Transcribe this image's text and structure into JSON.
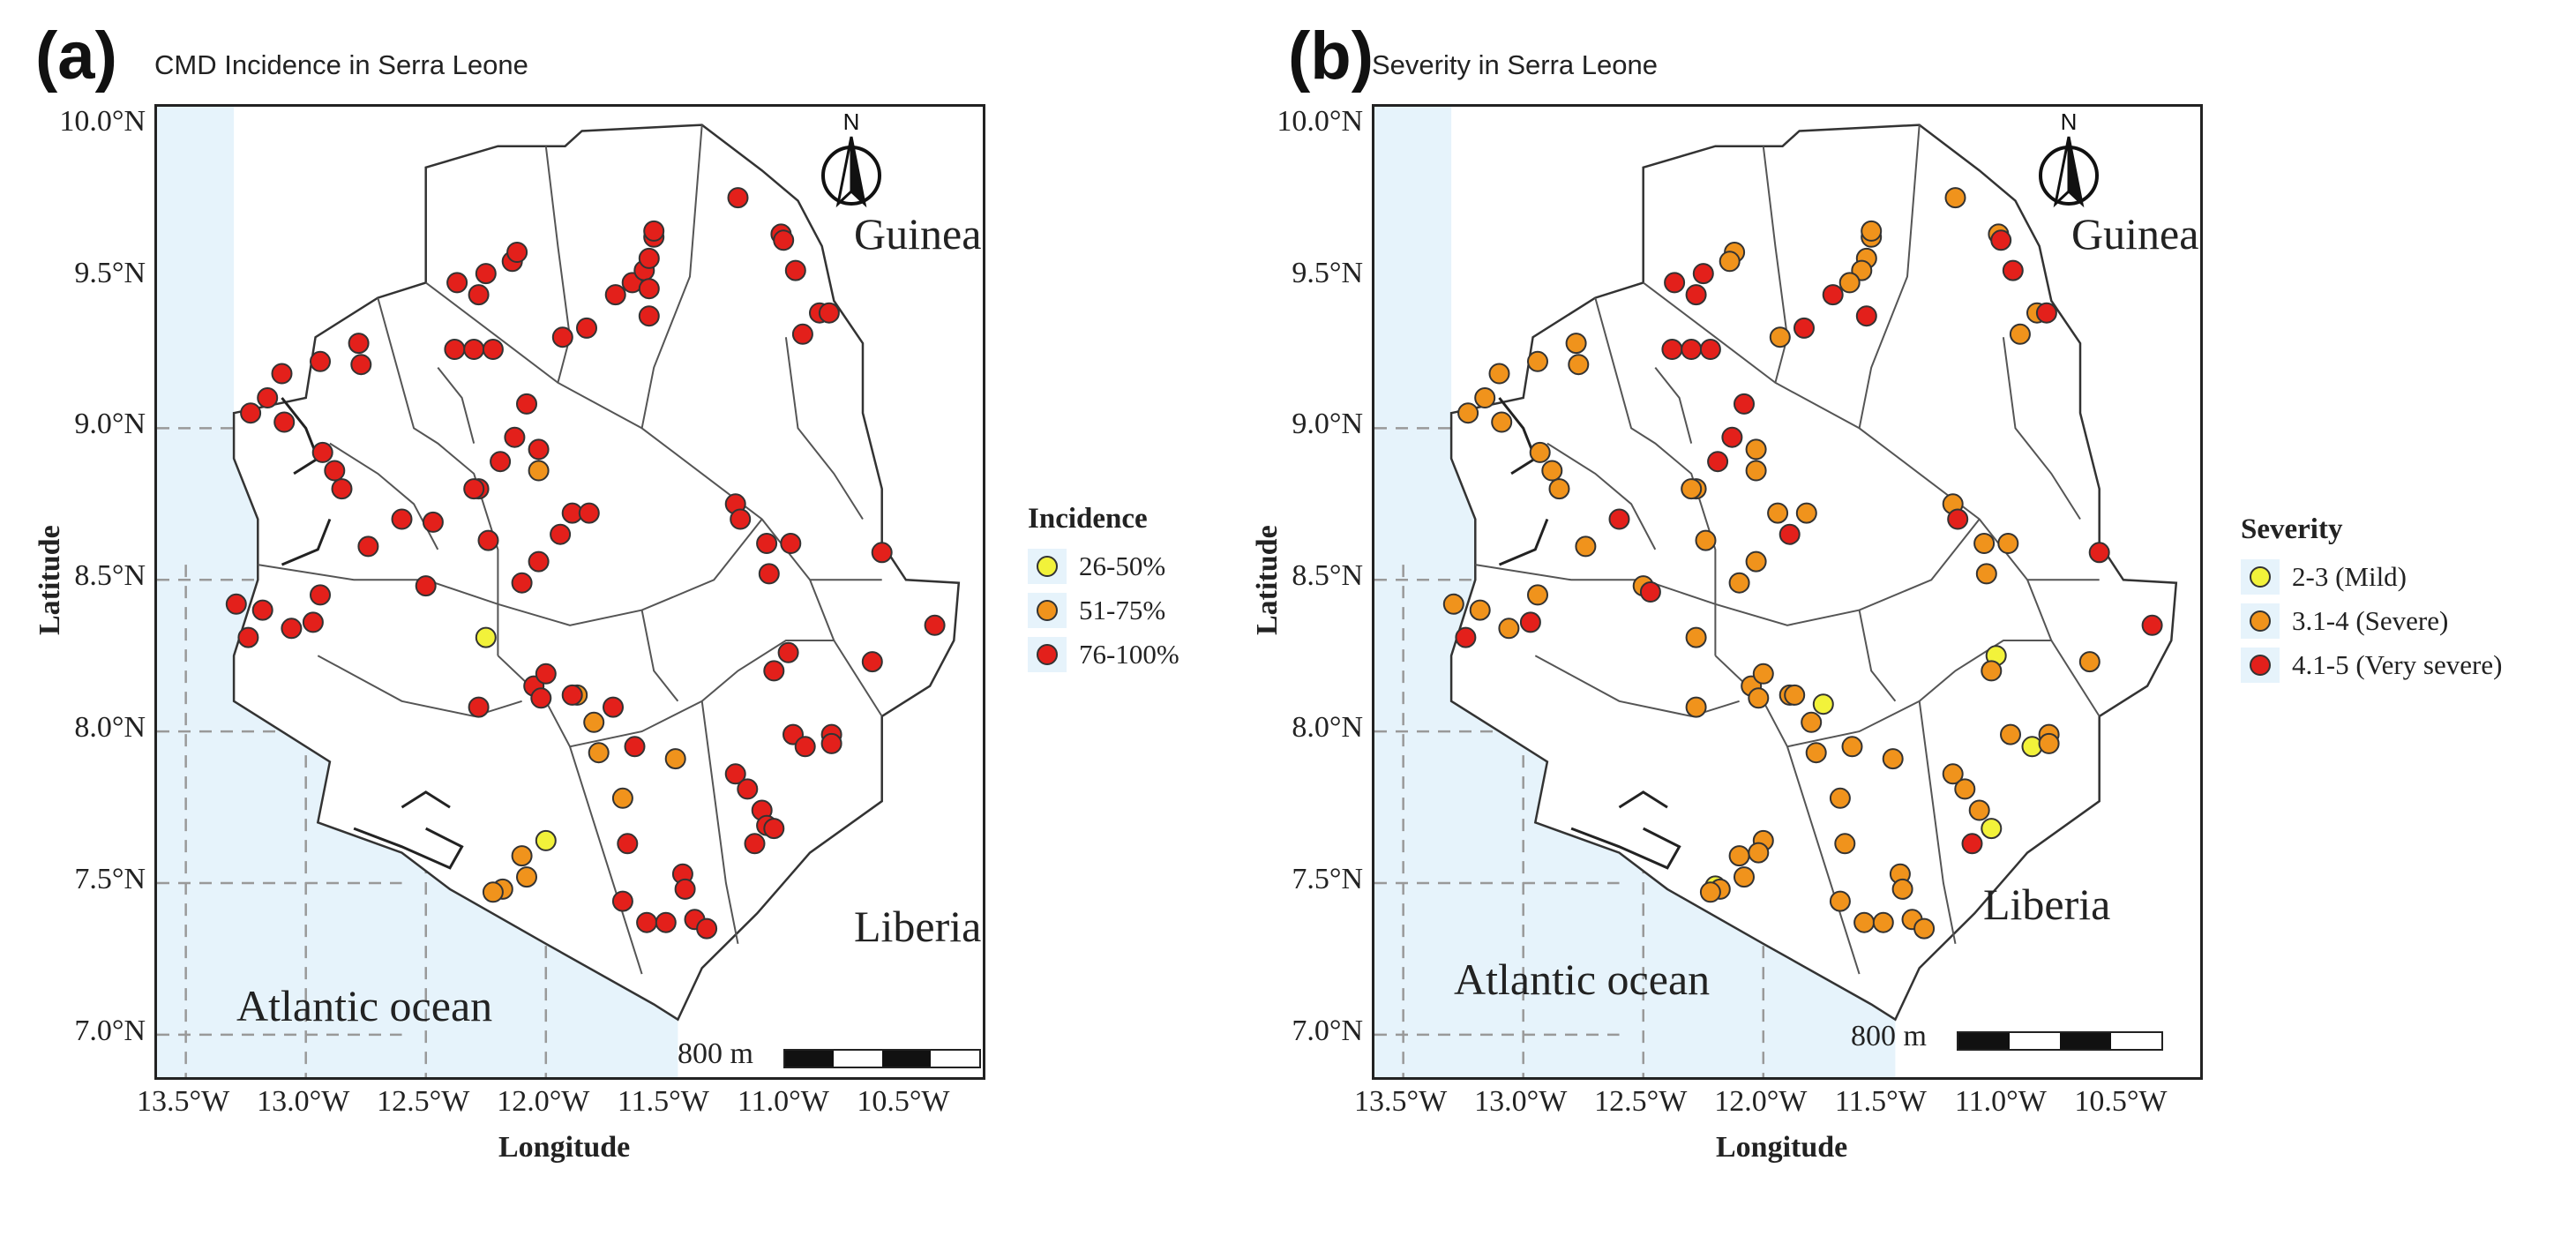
{
  "colors": {
    "ocean": "#e6f3fb",
    "land": "#ffffff",
    "border": "#555555",
    "grid": "#999999",
    "mild": "#f2f23a",
    "severe": "#f0931c",
    "very_severe": "#e3201b"
  },
  "panels": [
    {
      "letter": "(a)",
      "title": "CMD Incidence in Serra Leone",
      "x_label": "Longitude",
      "y_label": "Latitude",
      "x_ticks": [
        "13.5°W",
        "13.0°W",
        "12.5°W",
        "12.0°W",
        "11.5°W",
        "11.0°W",
        "10.5°W"
      ],
      "y_ticks": [
        "10.0°N",
        "9.5°N",
        "9.0°N",
        "8.5°N",
        "8.0°N",
        "7.5°N",
        "7.0°N"
      ],
      "guinea_label": "Guinea",
      "liberia_label": "Liberia",
      "ocean_label": "Atlantic ocean",
      "scale_label": "800 m",
      "north_label": "N",
      "legend": {
        "title": "Incidence",
        "items": [
          {
            "label": "26-50%",
            "color_key": "mild"
          },
          {
            "label": "51-75%",
            "color_key": "severe"
          },
          {
            "label": "76-100%",
            "color_key": "very_severe"
          }
        ]
      }
    },
    {
      "letter": "(b)",
      "title": "Severity in Serra Leone",
      "x_label": "Longitude",
      "y_label": "Latitude",
      "x_ticks": [
        "13.5°W",
        "13.0°W",
        "12.5°W",
        "12.0°W",
        "11.5°W",
        "11.0°W",
        "10.5°W"
      ],
      "y_ticks": [
        "10.0°N",
        "9.5°N",
        "9.0°N",
        "8.5°N",
        "8.0°N",
        "7.5°N",
        "7.0°N"
      ],
      "guinea_label": "Guinea",
      "liberia_label": "Liberia",
      "ocean_label": "Atlantic ocean",
      "scale_label": "800 m",
      "north_label": "N",
      "legend": {
        "title": "Severity",
        "items": [
          {
            "label": "2-3 (Mild)",
            "color_key": "mild"
          },
          {
            "label": "3.1-4 (Severe)",
            "color_key": "severe"
          },
          {
            "label": "4.1-5 (Very severe)",
            "color_key": "very_severe"
          }
        ]
      }
    }
  ],
  "chart_data": [
    {
      "type": "scatter",
      "title": "CMD Incidence in Serra Leone",
      "xlabel": "Longitude",
      "ylabel": "Latitude",
      "xlim": [
        -13.62,
        -10.18
      ],
      "ylim": [
        6.86,
        10.06
      ],
      "grid": "dashed graticule",
      "legend_position": "right",
      "series": [
        {
          "name": "26-50%",
          "color_key": "mild",
          "points": [
            [
              -12.25,
              8.31
            ],
            [
              -12.0,
              7.64
            ]
          ]
        },
        {
          "name": "51-75%",
          "color_key": "severe",
          "points": [
            [
              -12.03,
              8.86
            ],
            [
              -11.87,
              8.12
            ],
            [
              -11.8,
              8.03
            ],
            [
              -11.78,
              7.93
            ],
            [
              -11.68,
              7.78
            ],
            [
              -11.46,
              7.91
            ],
            [
              -12.1,
              7.59
            ],
            [
              -12.08,
              7.52
            ],
            [
              -12.18,
              7.48
            ],
            [
              -12.22,
              7.47
            ]
          ]
        },
        {
          "name": "76-100%",
          "color_key": "very_severe",
          "points": [
            [
              -13.23,
              9.05
            ],
            [
              -13.16,
              9.1
            ],
            [
              -13.1,
              9.18
            ],
            [
              -13.09,
              9.02
            ],
            [
              -12.94,
              9.22
            ],
            [
              -12.78,
              9.28
            ],
            [
              -12.77,
              9.21
            ],
            [
              -12.93,
              8.92
            ],
            [
              -12.88,
              8.86
            ],
            [
              -12.85,
              8.8
            ],
            [
              -12.74,
              8.61
            ],
            [
              -12.6,
              8.7
            ],
            [
              -12.5,
              8.48
            ],
            [
              -12.47,
              8.69
            ],
            [
              -12.37,
              9.48
            ],
            [
              -12.28,
              9.44
            ],
            [
              -12.25,
              9.51
            ],
            [
              -12.14,
              9.55
            ],
            [
              -12.12,
              9.58
            ],
            [
              -12.38,
              9.26
            ],
            [
              -12.3,
              9.26
            ],
            [
              -12.22,
              9.26
            ],
            [
              -12.08,
              9.08
            ],
            [
              -12.03,
              8.93
            ],
            [
              -12.13,
              8.97
            ],
            [
              -12.19,
              8.89
            ],
            [
              -12.28,
              8.8
            ],
            [
              -12.3,
              8.8
            ],
            [
              -12.24,
              8.63
            ],
            [
              -12.1,
              8.49
            ],
            [
              -12.03,
              8.56
            ],
            [
              -11.89,
              8.72
            ],
            [
              -11.94,
              8.65
            ],
            [
              -11.82,
              8.72
            ],
            [
              -11.93,
              9.3
            ],
            [
              -11.83,
              9.33
            ],
            [
              -11.71,
              9.44
            ],
            [
              -11.64,
              9.48
            ],
            [
              -11.59,
              9.52
            ],
            [
              -11.57,
              9.56
            ],
            [
              -11.55,
              9.63
            ],
            [
              -11.55,
              9.65
            ],
            [
              -11.57,
              9.46
            ],
            [
              -11.57,
              9.37
            ],
            [
              -11.2,
              9.76
            ],
            [
              -11.02,
              9.64
            ],
            [
              -11.01,
              9.62
            ],
            [
              -10.96,
              9.52
            ],
            [
              -10.86,
              9.38
            ],
            [
              -10.82,
              9.38
            ],
            [
              -10.93,
              9.31
            ],
            [
              -11.21,
              8.75
            ],
            [
              -11.19,
              8.7
            ],
            [
              -11.08,
              8.62
            ],
            [
              -11.07,
              8.52
            ],
            [
              -10.98,
              8.62
            ],
            [
              -10.6,
              8.59
            ],
            [
              -10.38,
              8.35
            ],
            [
              -10.64,
              8.23
            ],
            [
              -10.99,
              8.26
            ],
            [
              -11.05,
              8.2
            ],
            [
              -12.28,
              8.08
            ],
            [
              -12.05,
              8.15
            ],
            [
              -12.02,
              8.11
            ],
            [
              -12.0,
              8.19
            ],
            [
              -11.89,
              8.12
            ],
            [
              -11.72,
              8.08
            ],
            [
              -11.63,
              7.95
            ],
            [
              -11.66,
              7.63
            ],
            [
              -11.68,
              7.44
            ],
            [
              -11.58,
              7.37
            ],
            [
              -11.5,
              7.37
            ],
            [
              -11.43,
              7.53
            ],
            [
              -11.42,
              7.48
            ],
            [
              -11.38,
              7.38
            ],
            [
              -11.33,
              7.35
            ],
            [
              -11.21,
              7.86
            ],
            [
              -11.16,
              7.81
            ],
            [
              -11.1,
              7.74
            ],
            [
              -11.08,
              7.69
            ],
            [
              -11.05,
              7.68
            ],
            [
              -11.13,
              7.63
            ],
            [
              -10.97,
              7.99
            ],
            [
              -10.92,
              7.95
            ],
            [
              -10.81,
              7.99
            ],
            [
              -10.81,
              7.96
            ],
            [
              -13.29,
              8.42
            ],
            [
              -13.24,
              8.31
            ],
            [
              -13.18,
              8.4
            ],
            [
              -13.06,
              8.34
            ],
            [
              -12.97,
              8.36
            ],
            [
              -12.94,
              8.45
            ]
          ]
        }
      ]
    },
    {
      "type": "scatter",
      "title": "Severity in Serra Leone",
      "xlabel": "Longitude",
      "ylabel": "Latitude",
      "xlim": [
        -13.62,
        -10.18
      ],
      "ylim": [
        6.86,
        10.06
      ],
      "grid": "dashed graticule",
      "legend_position": "right",
      "series": [
        {
          "name": "2-3 (Mild)",
          "color_key": "mild",
          "points": [
            [
              -11.75,
              8.09
            ],
            [
              -11.03,
              8.25
            ],
            [
              -10.88,
              7.95
            ],
            [
              -11.05,
              7.68
            ],
            [
              -12.2,
              7.49
            ]
          ]
        },
        {
          "name": "3.1-4 (Severe)",
          "color_key": "severe",
          "points": [
            [
              -13.23,
              9.05
            ],
            [
              -13.16,
              9.1
            ],
            [
              -13.1,
              9.18
            ],
            [
              -13.09,
              9.02
            ],
            [
              -12.94,
              9.22
            ],
            [
              -12.78,
              9.28
            ],
            [
              -12.77,
              9.21
            ],
            [
              -12.93,
              8.92
            ],
            [
              -12.88,
              8.86
            ],
            [
              -12.85,
              8.8
            ],
            [
              -12.74,
              8.61
            ],
            [
              -12.5,
              8.48
            ],
            [
              -12.12,
              9.58
            ],
            [
              -12.14,
              9.55
            ],
            [
              -11.93,
              9.3
            ],
            [
              -11.57,
              9.56
            ],
            [
              -11.55,
              9.63
            ],
            [
              -11.55,
              9.65
            ],
            [
              -11.59,
              9.52
            ],
            [
              -11.64,
              9.48
            ],
            [
              -11.2,
              9.76
            ],
            [
              -11.02,
              9.64
            ],
            [
              -10.93,
              9.31
            ],
            [
              -10.86,
              9.38
            ],
            [
              -12.03,
              8.93
            ],
            [
              -12.03,
              8.86
            ],
            [
              -11.94,
              8.72
            ],
            [
              -11.82,
              8.72
            ],
            [
              -12.28,
              8.8
            ],
            [
              -12.3,
              8.8
            ],
            [
              -12.24,
              8.63
            ],
            [
              -12.1,
              8.49
            ],
            [
              -12.03,
              8.56
            ],
            [
              -11.21,
              8.75
            ],
            [
              -11.08,
              8.62
            ],
            [
              -11.07,
              8.52
            ],
            [
              -10.98,
              8.62
            ],
            [
              -10.64,
              8.23
            ],
            [
              -11.05,
              8.2
            ],
            [
              -12.28,
              8.31
            ],
            [
              -12.28,
              8.08
            ],
            [
              -12.05,
              8.15
            ],
            [
              -12.02,
              8.11
            ],
            [
              -12.0,
              8.19
            ],
            [
              -11.89,
              8.12
            ],
            [
              -11.87,
              8.12
            ],
            [
              -11.8,
              8.03
            ],
            [
              -11.78,
              7.93
            ],
            [
              -11.68,
              7.78
            ],
            [
              -11.63,
              7.95
            ],
            [
              -11.46,
              7.91
            ],
            [
              -11.66,
              7.63
            ],
            [
              -12.1,
              7.59
            ],
            [
              -12.08,
              7.52
            ],
            [
              -12.18,
              7.48
            ],
            [
              -12.22,
              7.47
            ],
            [
              -12.0,
              7.64
            ],
            [
              -12.02,
              7.6
            ],
            [
              -11.68,
              7.44
            ],
            [
              -11.58,
              7.37
            ],
            [
              -11.5,
              7.37
            ],
            [
              -11.43,
              7.53
            ],
            [
              -11.42,
              7.48
            ],
            [
              -11.38,
              7.38
            ],
            [
              -11.33,
              7.35
            ],
            [
              -11.21,
              7.86
            ],
            [
              -11.16,
              7.81
            ],
            [
              -11.1,
              7.74
            ],
            [
              -10.97,
              7.99
            ],
            [
              -10.81,
              7.99
            ],
            [
              -10.81,
              7.96
            ],
            [
              -13.29,
              8.42
            ],
            [
              -13.18,
              8.4
            ],
            [
              -13.06,
              8.34
            ],
            [
              -12.94,
              8.45
            ]
          ]
        },
        {
          "name": "4.1-5 (Very severe)",
          "color_key": "very_severe",
          "points": [
            [
              -12.37,
              9.48
            ],
            [
              -12.28,
              9.44
            ],
            [
              -12.25,
              9.51
            ],
            [
              -11.71,
              9.44
            ],
            [
              -11.57,
              9.37
            ],
            [
              -11.01,
              9.62
            ],
            [
              -10.96,
              9.52
            ],
            [
              -10.82,
              9.38
            ],
            [
              -12.38,
              9.26
            ],
            [
              -12.3,
              9.26
            ],
            [
              -12.22,
              9.26
            ],
            [
              -12.08,
              9.08
            ],
            [
              -12.13,
              8.97
            ],
            [
              -12.19,
              8.89
            ],
            [
              -11.89,
              8.65
            ],
            [
              -11.83,
              9.33
            ],
            [
              -12.6,
              8.7
            ],
            [
              -12.47,
              8.46
            ],
            [
              -11.19,
              8.7
            ],
            [
              -10.6,
              8.59
            ],
            [
              -10.38,
              8.35
            ],
            [
              -13.24,
              8.31
            ],
            [
              -12.97,
              8.36
            ],
            [
              -11.13,
              7.63
            ]
          ]
        }
      ]
    }
  ]
}
